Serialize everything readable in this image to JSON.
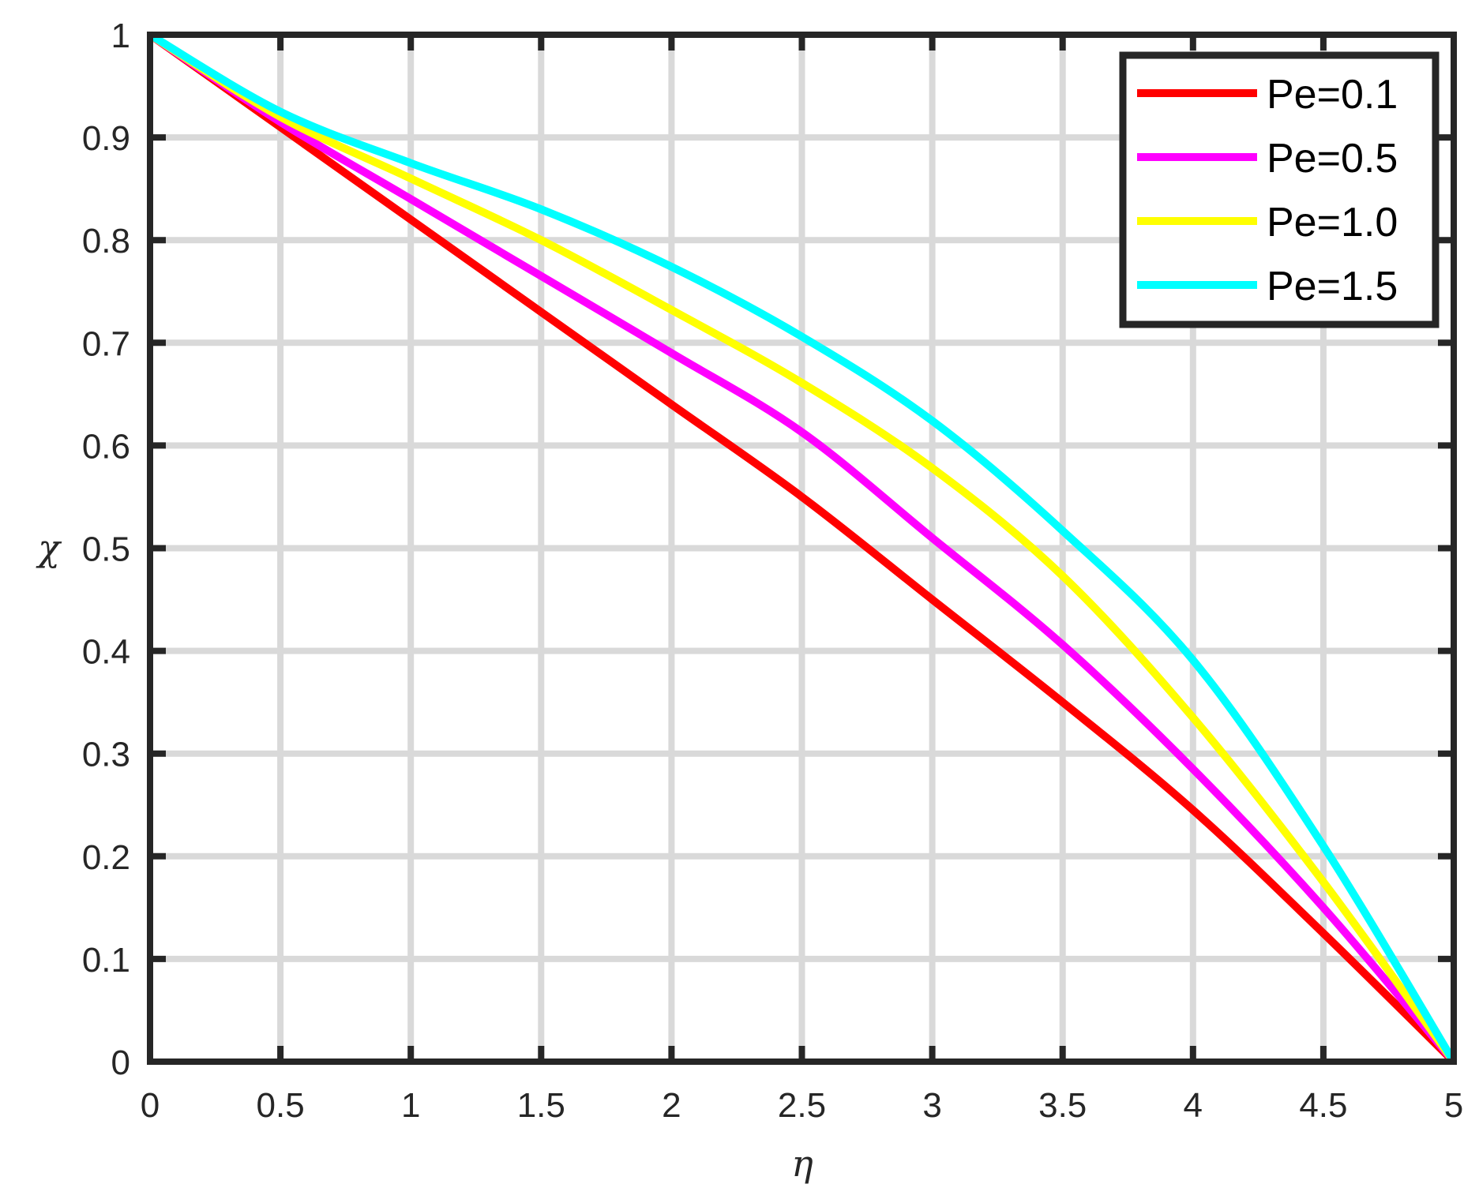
{
  "chart_data": {
    "type": "line",
    "title": "",
    "xlabel": "η",
    "ylabel": "χ",
    "xlim": [
      0,
      5
    ],
    "ylim": [
      0,
      1
    ],
    "grid": true,
    "legend_position": "upper right",
    "xticks": [
      "0",
      "0.5",
      "1",
      "1.5",
      "2",
      "2.5",
      "3",
      "3.5",
      "4",
      "4.5",
      "5"
    ],
    "yticks": [
      "0",
      "0.1",
      "0.2",
      "0.3",
      "0.4",
      "0.5",
      "0.6",
      "0.7",
      "0.8",
      "0.9",
      "1"
    ],
    "x": [
      0,
      0.5,
      1.0,
      1.5,
      2.0,
      2.5,
      3.0,
      3.5,
      4.0,
      4.5,
      5.0
    ],
    "series": [
      {
        "name": "Pe=0.1",
        "color": "#ff0000",
        "values": [
          1.0,
          0.91,
          0.82,
          0.73,
          0.64,
          0.55,
          0.45,
          0.35,
          0.245,
          0.125,
          0.0
        ]
      },
      {
        "name": "Pe=0.5",
        "color": "#ff00ff",
        "values": [
          1.0,
          0.915,
          0.84,
          0.765,
          0.69,
          0.613,
          0.51,
          0.406,
          0.285,
          0.15,
          0.0
        ]
      },
      {
        "name": "Pe=1.0",
        "color": "#ffff00",
        "values": [
          1.0,
          0.92,
          0.86,
          0.8,
          0.732,
          0.661,
          0.578,
          0.473,
          0.335,
          0.175,
          0.0
        ]
      },
      {
        "name": "Pe=1.5",
        "color": "#00ffff",
        "values": [
          1.0,
          0.925,
          0.875,
          0.83,
          0.774,
          0.706,
          0.624,
          0.517,
          0.391,
          0.21,
          0.0
        ]
      }
    ]
  },
  "legend": {
    "items": [
      {
        "label": "Pe=0.1",
        "color": "#ff0000"
      },
      {
        "label": "Pe=0.5",
        "color": "#ff00ff"
      },
      {
        "label": "Pe=1.0",
        "color": "#ffff00"
      },
      {
        "label": "Pe=1.5",
        "color": "#00ffff"
      }
    ]
  },
  "axes": {
    "xlabel": "η",
    "ylabel": "χ"
  }
}
